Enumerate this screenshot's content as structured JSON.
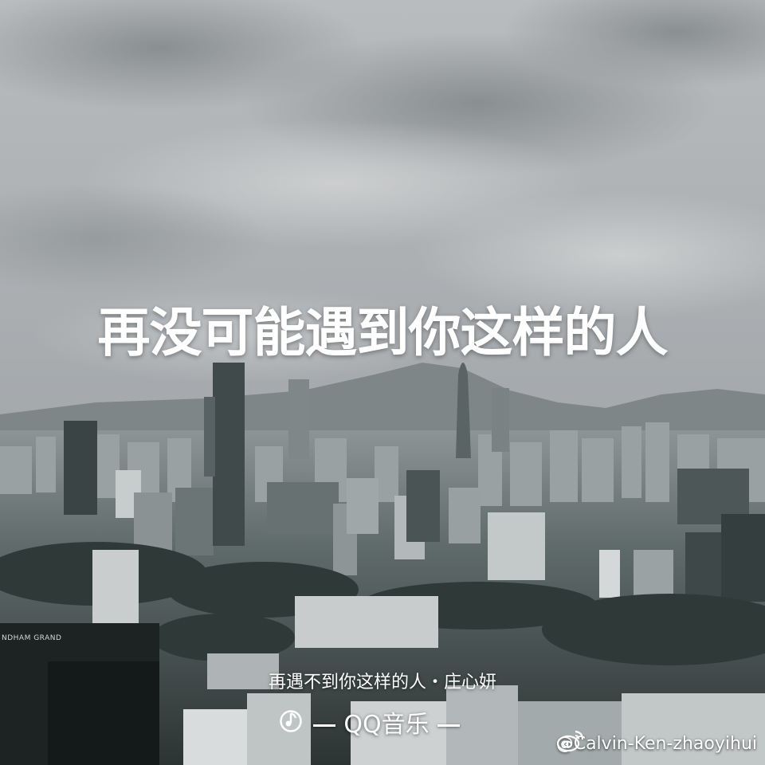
{
  "headline": "再没可能遇到你这样的人",
  "song_line": "再遇不到你这样的人・庄心妍",
  "brand": {
    "name": "QQ音乐",
    "icon": "qq-music-icon"
  },
  "watermark": {
    "text": "@Calvin-Ken-zhaoyihui",
    "icon": "weibo-icon"
  },
  "building_sign": "NDHAM GRAND",
  "colors": {
    "sky": "#a9adb0",
    "text": "#ffffff",
    "city_dark": "#26302f"
  }
}
